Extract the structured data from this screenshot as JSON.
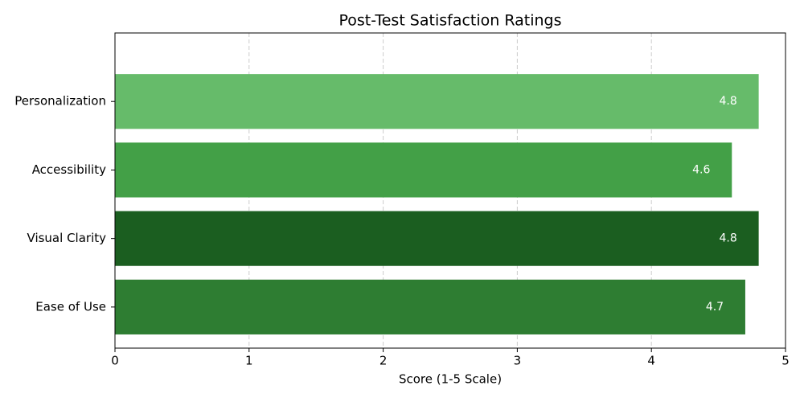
{
  "chart_data": {
    "type": "barh",
    "title": "Post-Test Satisfaction Ratings",
    "x_label": "Score (1-5 Scale)",
    "categories": [
      "Ease of Use",
      "Visual Clarity",
      "Accessibility",
      "Personalization"
    ],
    "values": [
      4.7,
      4.8,
      4.6,
      4.8
    ],
    "colors": [
      "#2e7d32",
      "#1b5e20",
      "#43a047",
      "#66bb6a"
    ],
    "xlim": [
      0,
      5
    ],
    "xticks": [
      0,
      1,
      2,
      3,
      4,
      5
    ],
    "grid": true
  }
}
